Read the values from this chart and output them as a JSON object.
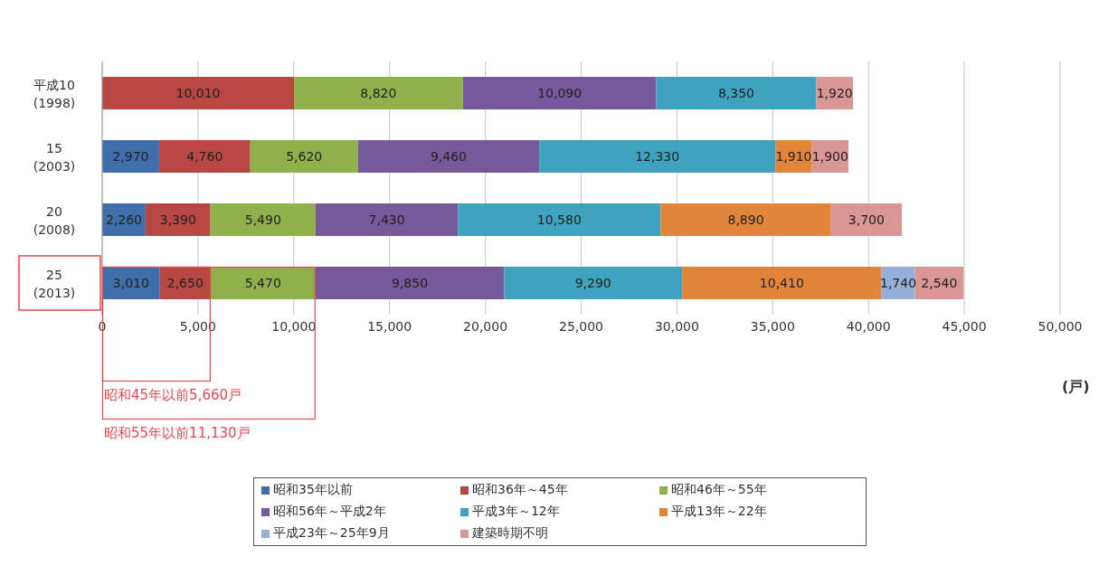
{
  "chart_data": {
    "type": "bar",
    "orientation": "horizontal",
    "stacked": true,
    "categories": [
      "平成10\n(1998)",
      "15\n(2003)",
      "20\n(2008)",
      "25\n(2013)"
    ],
    "series": [
      {
        "name": "昭和35年以前",
        "color": "#3f6faa",
        "values": [
          null,
          2970,
          2260,
          3010
        ],
        "value_labels": [
          null,
          "2,970",
          "2,260",
          "3,010"
        ]
      },
      {
        "name": "昭和36年～45年",
        "color": "#b84744",
        "values": [
          10010,
          4760,
          3390,
          2650
        ],
        "value_labels": [
          "10,010",
          "4,760",
          "3,390",
          "2,650"
        ]
      },
      {
        "name": "昭和46年～55年",
        "color": "#8fb04a",
        "values": [
          8820,
          5620,
          5490,
          5470
        ],
        "value_labels": [
          "8,820",
          "5,620",
          "5,490",
          "5,470"
        ]
      },
      {
        "name": "昭和56年～平成2年",
        "color": "#76599a",
        "values": [
          10090,
          9460,
          7430,
          9850
        ],
        "value_labels": [
          "10,090",
          "9,460",
          "7,430",
          "9,850"
        ]
      },
      {
        "name": "平成3年～12年",
        "color": "#3fa3bf",
        "values": [
          8350,
          12330,
          10580,
          9290
        ],
        "value_labels": [
          "8,350",
          "12,330",
          "10,580",
          "9,290"
        ]
      },
      {
        "name": "平成13年～22年",
        "color": "#e0853a",
        "values": [
          null,
          1910,
          8890,
          10410
        ],
        "value_labels": [
          null,
          "1,910",
          "8,890",
          "10,410"
        ]
      },
      {
        "name": "平成23年～25年9月",
        "color": "#94afd8",
        "values": [
          null,
          null,
          null,
          1740
        ],
        "value_labels": [
          null,
          null,
          null,
          "1,740"
        ]
      },
      {
        "name": "建築時期不明",
        "color": "#d99694",
        "values": [
          1920,
          1900,
          3700,
          2540
        ],
        "value_labels": [
          "1,920",
          "1,900",
          "3,700",
          "2,540"
        ]
      }
    ],
    "xlim": [
      0,
      50000
    ],
    "xticks": [
      {
        "value": 0,
        "label": "0"
      },
      {
        "value": 5000,
        "label": "5,000"
      },
      {
        "value": 10000,
        "label": "10,000"
      },
      {
        "value": 15000,
        "label": "15,000"
      },
      {
        "value": 20000,
        "label": "20,000"
      },
      {
        "value": 25000,
        "label": "25,000"
      },
      {
        "value": 30000,
        "label": "30,000"
      },
      {
        "value": 35000,
        "label": "35,000"
      },
      {
        "value": 40000,
        "label": "40,000"
      },
      {
        "value": 45000,
        "label": "45,000"
      },
      {
        "value": 50000,
        "label": "50,000"
      }
    ],
    "xlabel": "(戸)",
    "grid": "x",
    "legend": "bottom",
    "annotations": [
      "昭和45年以前5,660戸",
      "昭和55年以前11,130戸"
    ]
  }
}
